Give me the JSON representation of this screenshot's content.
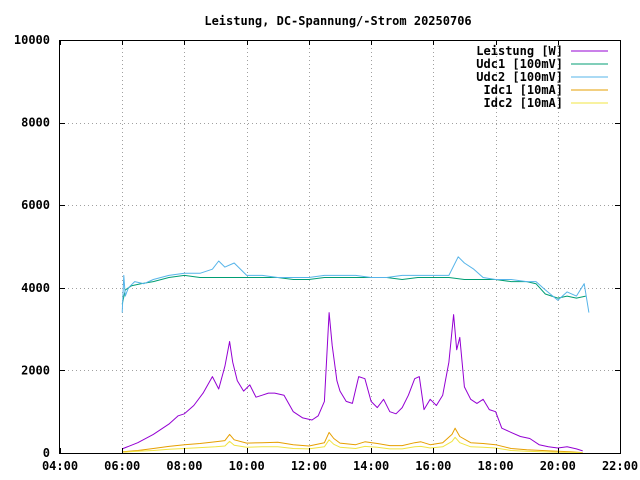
{
  "chart_data": {
    "type": "line",
    "title": "Leistung, DC-Spannung/-Strom 20250706",
    "xlabel": "",
    "ylabel": "",
    "xlim": [
      4,
      22
    ],
    "ylim": [
      0,
      10000
    ],
    "x_ticks": [
      4,
      6,
      8,
      10,
      12,
      14,
      16,
      18,
      20,
      22
    ],
    "x_tick_labels": [
      "04:00",
      "06:00",
      "08:00",
      "10:00",
      "12:00",
      "14:00",
      "16:00",
      "18:00",
      "20:00",
      "22:00"
    ],
    "y_ticks": [
      0,
      2000,
      4000,
      6000,
      8000,
      10000
    ],
    "y_tick_labels": [
      "0",
      "2000",
      "4000",
      "6000",
      "8000",
      "10000"
    ],
    "grid": true,
    "legend_position": "top-right",
    "series": [
      {
        "name": "Leistung [W]",
        "color": "#9400d3",
        "x": [
          6.0,
          6.5,
          7.0,
          7.5,
          7.8,
          8.0,
          8.3,
          8.6,
          8.9,
          9.1,
          9.3,
          9.45,
          9.55,
          9.7,
          9.9,
          10.1,
          10.3,
          10.5,
          10.7,
          10.9,
          11.2,
          11.5,
          11.8,
          12.1,
          12.3,
          12.5,
          12.65,
          12.75,
          12.9,
          13.0,
          13.2,
          13.4,
          13.6,
          13.8,
          14.0,
          14.2,
          14.4,
          14.6,
          14.8,
          15.0,
          15.2,
          15.4,
          15.55,
          15.7,
          15.9,
          16.1,
          16.3,
          16.5,
          16.65,
          16.75,
          16.85,
          17.0,
          17.2,
          17.4,
          17.6,
          17.8,
          18.0,
          18.2,
          18.5,
          18.8,
          19.1,
          19.4,
          19.7,
          20.0,
          20.3,
          20.6,
          20.8
        ],
        "y": [
          100,
          250,
          450,
          700,
          900,
          950,
          1150,
          1450,
          1850,
          1550,
          2100,
          2700,
          2200,
          1750,
          1500,
          1650,
          1350,
          1400,
          1450,
          1450,
          1400,
          1000,
          850,
          800,
          900,
          1250,
          3400,
          2600,
          1750,
          1500,
          1250,
          1200,
          1850,
          1800,
          1250,
          1100,
          1300,
          1000,
          950,
          1100,
          1400,
          1800,
          1850,
          1050,
          1300,
          1150,
          1400,
          2200,
          3350,
          2500,
          2800,
          1600,
          1300,
          1200,
          1300,
          1050,
          1000,
          600,
          500,
          400,
          350,
          200,
          150,
          120,
          150,
          100,
          50
        ]
      },
      {
        "name": "Udc1 [100mV]",
        "color": "#009e73",
        "x": [
          6.0,
          6.1,
          6.3,
          6.6,
          7.0,
          7.5,
          8.0,
          8.5,
          9.0,
          9.5,
          10.0,
          10.5,
          11.0,
          11.5,
          12.0,
          12.5,
          13.0,
          13.5,
          14.0,
          14.5,
          15.0,
          15.5,
          16.0,
          16.5,
          17.0,
          17.5,
          18.0,
          18.5,
          19.0,
          19.3,
          19.6,
          20.0,
          20.3,
          20.6,
          20.9
        ],
        "y": [
          3600,
          3950,
          4050,
          4100,
          4150,
          4250,
          4300,
          4250,
          4250,
          4250,
          4250,
          4250,
          4250,
          4200,
          4200,
          4250,
          4250,
          4250,
          4250,
          4250,
          4200,
          4250,
          4250,
          4250,
          4200,
          4200,
          4200,
          4150,
          4150,
          4100,
          3850,
          3750,
          3800,
          3750,
          3800
        ]
      },
      {
        "name": "Udc2 [100mV]",
        "color": "#56b4e9",
        "x": [
          6.0,
          6.05,
          6.1,
          6.2,
          6.4,
          6.7,
          7.0,
          7.5,
          8.0,
          8.5,
          8.9,
          9.1,
          9.3,
          9.6,
          10.0,
          10.5,
          11.0,
          11.5,
          12.0,
          12.5,
          13.0,
          13.5,
          14.0,
          14.5,
          15.0,
          15.5,
          16.0,
          16.5,
          16.8,
          17.0,
          17.3,
          17.6,
          18.0,
          18.5,
          19.0,
          19.3,
          19.6,
          20.0,
          20.3,
          20.6,
          20.85,
          21.0
        ],
        "y": [
          3400,
          4300,
          3800,
          4000,
          4150,
          4100,
          4200,
          4300,
          4350,
          4350,
          4450,
          4650,
          4500,
          4600,
          4300,
          4300,
          4250,
          4250,
          4250,
          4300,
          4300,
          4300,
          4250,
          4250,
          4300,
          4300,
          4300,
          4300,
          4750,
          4600,
          4450,
          4250,
          4200,
          4200,
          4150,
          4150,
          3950,
          3700,
          3900,
          3800,
          4100,
          3400
        ]
      },
      {
        "name": "Idc1 [10mA]",
        "color": "#e69f00",
        "x": [
          6.0,
          6.5,
          7.0,
          7.5,
          8.0,
          8.5,
          9.0,
          9.3,
          9.45,
          9.6,
          10.0,
          10.5,
          11.0,
          11.5,
          12.0,
          12.5,
          12.65,
          12.8,
          13.0,
          13.5,
          13.8,
          14.2,
          14.6,
          15.0,
          15.4,
          15.6,
          15.9,
          16.3,
          16.6,
          16.7,
          16.85,
          17.2,
          17.6,
          18.0,
          18.5,
          19.0,
          19.5,
          20.0,
          20.4,
          20.8
        ],
        "y": [
          30,
          60,
          110,
          160,
          200,
          230,
          270,
          300,
          450,
          320,
          240,
          250,
          260,
          200,
          170,
          250,
          500,
          350,
          240,
          200,
          270,
          230,
          180,
          180,
          250,
          270,
          200,
          250,
          450,
          600,
          400,
          250,
          230,
          200,
          110,
          80,
          60,
          40,
          30,
          10
        ]
      },
      {
        "name": "Idc2 [10mA]",
        "color": "#f0e442",
        "x": [
          6.0,
          6.5,
          7.0,
          7.5,
          8.0,
          8.5,
          9.0,
          9.3,
          9.45,
          9.6,
          10.0,
          10.5,
          11.0,
          11.5,
          12.0,
          12.5,
          12.65,
          12.8,
          13.0,
          13.5,
          13.8,
          14.2,
          14.6,
          15.0,
          15.4,
          15.6,
          15.9,
          16.3,
          16.6,
          16.7,
          16.85,
          17.2,
          17.6,
          18.0,
          18.5,
          19.0,
          19.5,
          20.0,
          20.4,
          20.8
        ],
        "y": [
          20,
          40,
          60,
          90,
          110,
          130,
          150,
          170,
          280,
          190,
          140,
          150,
          150,
          110,
          100,
          150,
          320,
          210,
          140,
          110,
          160,
          140,
          100,
          100,
          150,
          160,
          120,
          150,
          280,
          380,
          250,
          150,
          140,
          120,
          60,
          40,
          30,
          20,
          15,
          5
        ]
      }
    ]
  }
}
